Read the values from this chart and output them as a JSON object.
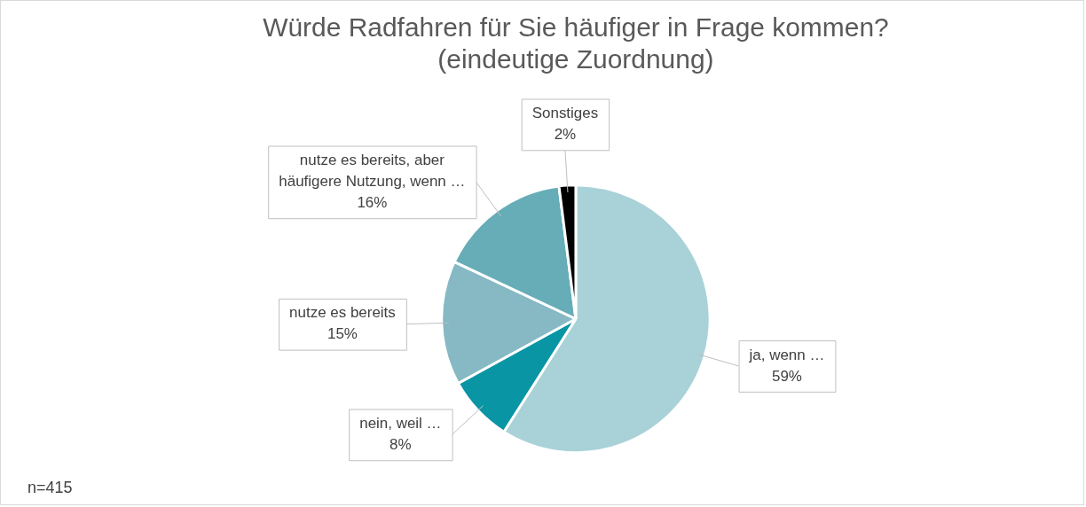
{
  "chart_data": {
    "type": "pie",
    "title": "Würde Radfahren für Sie häufiger in Frage kommen? (eindeutige Zuordnung)",
    "categories": [
      "ja, wenn …",
      "nein, weil …",
      "nutze es bereits",
      "nutze es bereits, aber häufigere Nutzung, wenn …",
      "Sonstiges"
    ],
    "values": [
      59,
      8,
      15,
      16,
      2
    ],
    "value_labels": [
      "59%",
      "8%",
      "15%",
      "16%",
      "2%"
    ],
    "colors": [
      "#a9d1d8",
      "#0a95a5",
      "#86b9c4",
      "#66adb8",
      "#000000"
    ],
    "legend": false,
    "annotations": [
      "n=415"
    ]
  }
}
